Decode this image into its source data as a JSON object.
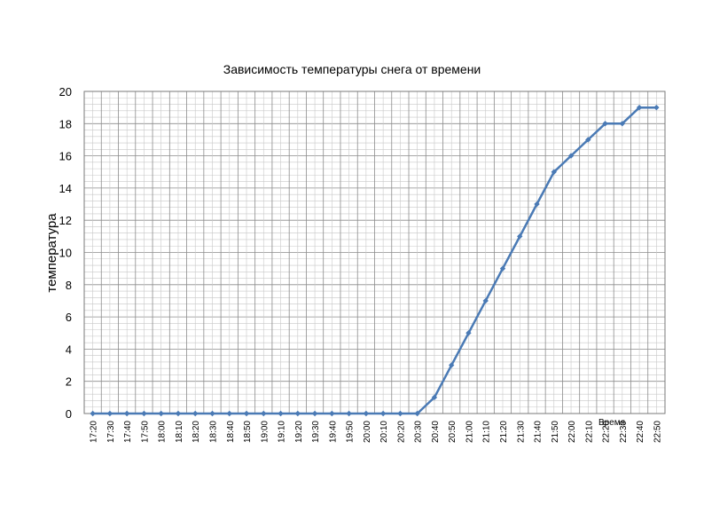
{
  "chart_data": {
    "type": "line",
    "title": "Зависимость температуры снега от времени",
    "xlabel": "Время",
    "ylabel": "температура",
    "ylim": [
      0,
      20
    ],
    "yticks": [
      "0",
      "2",
      "4",
      "6",
      "8",
      "10",
      "12",
      "14",
      "16",
      "18",
      "20"
    ],
    "grid": true,
    "legend": "none",
    "categories": [
      "17:20",
      "17:30",
      "17:40",
      "17:50",
      "18:00",
      "18:10",
      "18:20",
      "18:30",
      "18:40",
      "18:50",
      "19:00",
      "19:10",
      "19:20",
      "19:30",
      "19:40",
      "19:50",
      "20:00",
      "20:10",
      "20:20",
      "20:30",
      "20:40",
      "20:50",
      "21:00",
      "21:10",
      "21:20",
      "21:30",
      "21:40",
      "21:50",
      "22:00",
      "22:10",
      "22:20",
      "22:30",
      "22:40",
      "22:50"
    ],
    "series": [
      {
        "values": [
          0,
          0,
          0,
          0,
          0,
          0,
          0,
          0,
          0,
          0,
          0,
          0,
          0,
          0,
          0,
          0,
          0,
          0,
          0,
          0,
          1,
          3,
          5,
          7,
          9,
          11,
          13,
          15,
          16,
          17,
          18,
          18,
          19,
          19
        ]
      }
    ],
    "colors": {
      "line": "#4a7ab5",
      "marker": "#4a7ab5"
    }
  }
}
